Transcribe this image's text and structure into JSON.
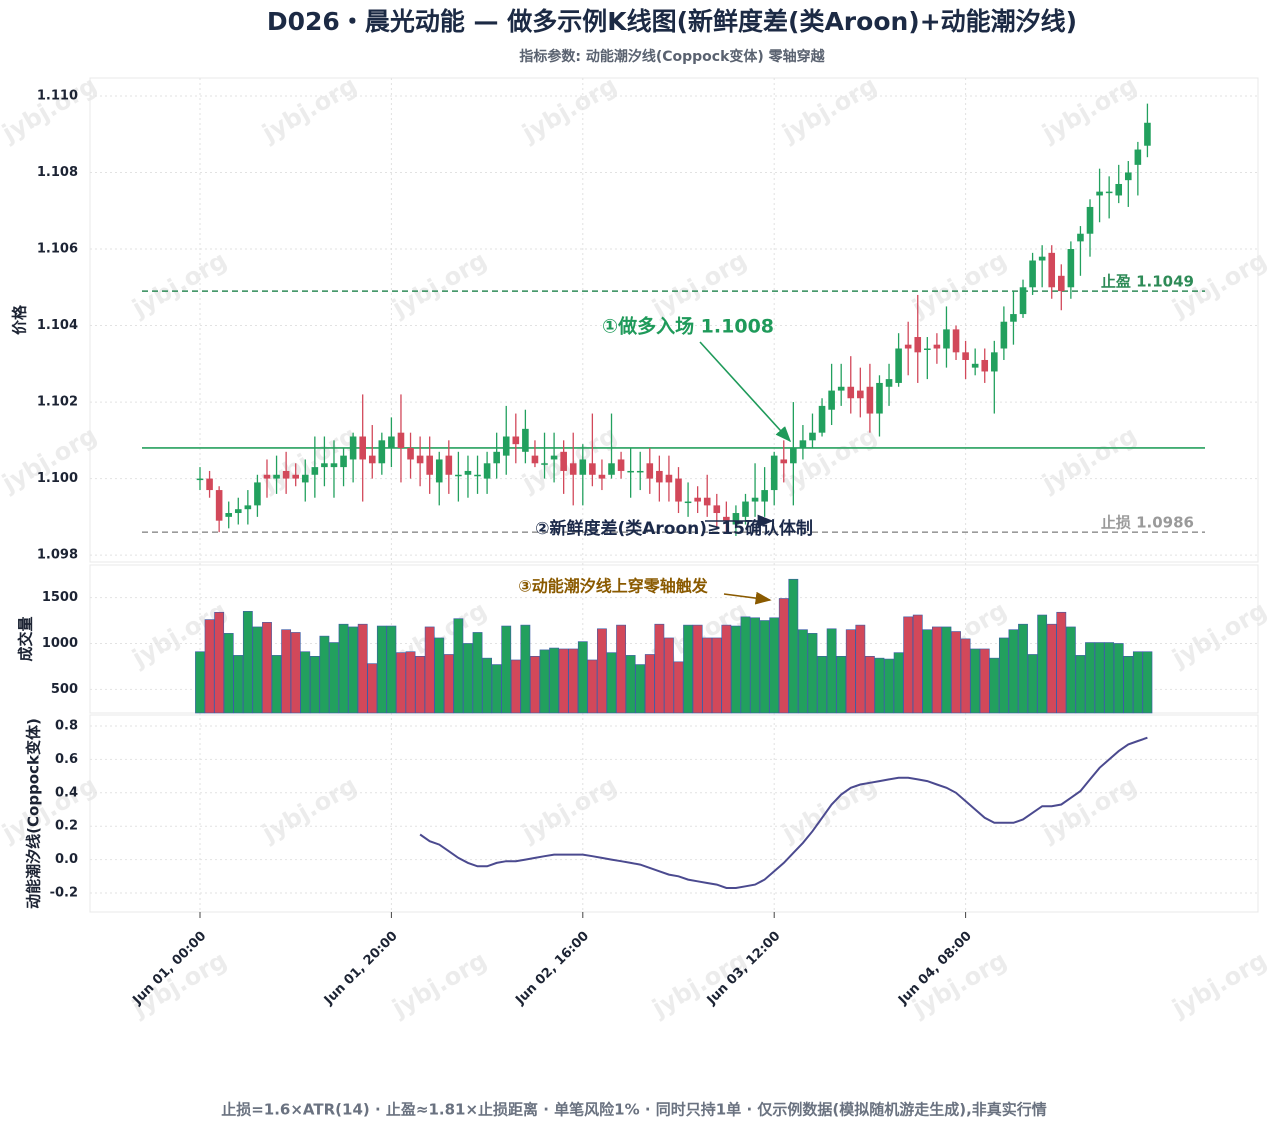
{
  "chart_data": {
    "type": "candlestick",
    "title": "D026・晨光动能 — 做多示例K线图(新鲜度差(类Aroon)+动能潮汐线)",
    "subtitle": "指标参数: 动能潮汐线(Coppock变体) 零轴穿越",
    "ylabel": "价格",
    "footer": "止损=1.6×ATR(14) · 止盈≈1.81×止损距离 · 单笔风险1% · 同时只持1单 · 仅示例数据(模拟随机游走生成),非真实行情",
    "watermark": "jybj.org",
    "up_color": "#22a05e",
    "down_color": "#d2485a",
    "grid": true,
    "x": [
      "Jun 01, 00:00",
      "Jun 01, 01:00",
      "Jun 01, 02:00",
      "Jun 01, 03:00",
      "Jun 01, 04:00",
      "Jun 01, 05:00",
      "Jun 01, 06:00",
      "Jun 01, 07:00",
      "Jun 01, 08:00",
      "Jun 01, 09:00",
      "Jun 01, 10:00",
      "Jun 01, 11:00",
      "Jun 01, 12:00",
      "Jun 01, 13:00",
      "Jun 01, 14:00",
      "Jun 01, 15:00",
      "Jun 01, 16:00",
      "Jun 01, 17:00",
      "Jun 01, 18:00",
      "Jun 01, 19:00",
      "Jun 01, 20:00",
      "Jun 01, 21:00",
      "Jun 01, 22:00",
      "Jun 01, 23:00",
      "Jun 02, 00:00",
      "Jun 02, 01:00",
      "Jun 02, 02:00",
      "Jun 02, 03:00",
      "Jun 02, 04:00",
      "Jun 02, 05:00",
      "Jun 02, 06:00",
      "Jun 02, 07:00",
      "Jun 02, 08:00",
      "Jun 02, 09:00",
      "Jun 02, 10:00",
      "Jun 02, 11:00",
      "Jun 02, 12:00",
      "Jun 02, 13:00",
      "Jun 02, 14:00",
      "Jun 02, 15:00",
      "Jun 02, 16:00",
      "Jun 02, 17:00",
      "Jun 02, 18:00",
      "Jun 02, 19:00",
      "Jun 02, 20:00",
      "Jun 02, 21:00",
      "Jun 02, 22:00",
      "Jun 02, 23:00",
      "Jun 03, 00:00",
      "Jun 03, 01:00",
      "Jun 03, 02:00",
      "Jun 03, 03:00",
      "Jun 03, 04:00",
      "Jun 03, 05:00",
      "Jun 03, 06:00",
      "Jun 03, 07:00",
      "Jun 03, 08:00",
      "Jun 03, 09:00",
      "Jun 03, 10:00",
      "Jun 03, 11:00",
      "Jun 03, 12:00",
      "Jun 03, 13:00",
      "Jun 03, 14:00",
      "Jun 03, 15:00",
      "Jun 03, 16:00",
      "Jun 03, 17:00",
      "Jun 03, 18:00",
      "Jun 03, 19:00",
      "Jun 03, 20:00",
      "Jun 03, 21:00",
      "Jun 03, 22:00",
      "Jun 03, 23:00",
      "Jun 04, 00:00",
      "Jun 04, 01:00",
      "Jun 04, 02:00",
      "Jun 04, 03:00",
      "Jun 04, 04:00",
      "Jun 04, 05:00",
      "Jun 04, 06:00",
      "Jun 04, 07:00",
      "Jun 04, 08:00",
      "Jun 04, 09:00",
      "Jun 04, 10:00",
      "Jun 04, 11:00",
      "Jun 04, 12:00",
      "Jun 04, 13:00",
      "Jun 04, 14:00",
      "Jun 04, 15:00",
      "Jun 04, 16:00",
      "Jun 04, 17:00",
      "Jun 04, 18:00",
      "Jun 04, 19:00",
      "Jun 04, 20:00",
      "Jun 04, 21:00",
      "Jun 04, 22:00",
      "Jun 04, 23:00",
      "Jun 05, 00:00",
      "Jun 05, 01:00",
      "Jun 05, 02:00",
      "Jun 05, 03:00"
    ],
    "xticks": [
      "Jun 01, 00:00",
      "Jun 01, 20:00",
      "Jun 02, 16:00",
      "Jun 03, 12:00",
      "Jun 04, 08:00"
    ],
    "ohlc": [
      [
        1.1,
        1.1003,
        1.0997,
        1.1
      ],
      [
        1.1,
        1.1002,
        1.0995,
        1.0997
      ],
      [
        1.0997,
        1.0998,
        1.0986,
        1.0989
      ],
      [
        1.099,
        1.0994,
        1.0987,
        1.0991
      ],
      [
        1.0991,
        1.0995,
        1.0988,
        1.0992
      ],
      [
        1.0992,
        1.0997,
        1.0988,
        1.0993
      ],
      [
        1.0993,
        1.1001,
        1.099,
        1.0999
      ],
      [
        1.1001,
        1.1005,
        1.0995,
        1.1
      ],
      [
        1.1,
        1.1006,
        1.0996,
        1.1001
      ],
      [
        1.1002,
        1.1007,
        1.0996,
        1.1
      ],
      [
        1.1001,
        1.1004,
        1.0998,
        1.1
      ],
      [
        1.0999,
        1.1005,
        1.0994,
        1.1001
      ],
      [
        1.1001,
        1.1011,
        1.0995,
        1.1003
      ],
      [
        1.1003,
        1.1011,
        1.0998,
        1.1004
      ],
      [
        1.1003,
        1.101,
        1.0995,
        1.1004
      ],
      [
        1.1003,
        1.1008,
        1.0998,
        1.1006
      ],
      [
        1.1005,
        1.1012,
        1.0999,
        1.1011
      ],
      [
        1.1011,
        1.1022,
        1.0994,
        1.1005
      ],
      [
        1.1006,
        1.1014,
        1.1,
        1.1004
      ],
      [
        1.1004,
        1.1012,
        1.1001,
        1.101
      ],
      [
        1.1008,
        1.1016,
        1.1003,
        1.1011
      ],
      [
        1.1012,
        1.1022,
        1.0999,
        1.1008
      ],
      [
        1.1008,
        1.1012,
        1.1,
        1.1005
      ],
      [
        1.1006,
        1.1011,
        1.0998,
        1.1004
      ],
      [
        1.1006,
        1.1011,
        1.0996,
        1.1001
      ],
      [
        1.0999,
        1.1007,
        1.0993,
        1.1005
      ],
      [
        1.1006,
        1.101,
        1.0996,
        1.1001
      ],
      [
        1.1001,
        1.1007,
        1.0994,
        1.1001
      ],
      [
        1.1001,
        1.1006,
        1.0995,
        1.1002
      ],
      [
        1.1001,
        1.1006,
        1.0996,
        1.1001
      ],
      [
        1.1,
        1.1007,
        1.0996,
        1.1004
      ],
      [
        1.1004,
        1.1012,
        1.1,
        1.1007
      ],
      [
        1.1006,
        1.1019,
        1.1001,
        1.1011
      ],
      [
        1.1011,
        1.1017,
        1.1004,
        1.1009
      ],
      [
        1.1007,
        1.1018,
        1.1004,
        1.1013
      ],
      [
        1.1006,
        1.101,
        1.1003,
        1.1004
      ],
      [
        1.1004,
        1.1012,
        1.1,
        1.1004
      ],
      [
        1.1005,
        1.1012,
        1.0999,
        1.1006
      ],
      [
        1.1007,
        1.101,
        1.0996,
        1.1002
      ],
      [
        1.1004,
        1.1012,
        1.0993,
        1.1001
      ],
      [
        1.1001,
        1.1009,
        1.0993,
        1.1005
      ],
      [
        1.1004,
        1.1017,
        1.0998,
        1.1001
      ],
      [
        1.1001,
        1.1005,
        1.0997,
        1.1
      ],
      [
        1.1001,
        1.1017,
        1.1,
        1.1004
      ],
      [
        1.1005,
        1.1007,
        1.1,
        1.1002
      ],
      [
        1.1002,
        1.1008,
        1.0995,
        1.1002
      ],
      [
        1.1002,
        1.1007,
        1.0997,
        1.1002
      ],
      [
        1.1004,
        1.1008,
        1.0996,
        1.1
      ],
      [
        1.1002,
        1.1006,
        1.0994,
        1.0999
      ],
      [
        1.1001,
        1.1006,
        1.0994,
        1.0999
      ],
      [
        1.1,
        1.1003,
        1.0991,
        1.0994
      ],
      [
        1.0994,
        1.0999,
        1.099,
        1.0994
      ],
      [
        1.0995,
        1.0998,
        1.0991,
        1.0994
      ],
      [
        1.0995,
        1.1001,
        1.099,
        1.0993
      ],
      [
        1.0993,
        1.0996,
        1.0987,
        1.0991
      ],
      [
        1.099,
        1.0994,
        1.0986,
        1.0989
      ],
      [
        1.0988,
        1.0993,
        1.0985,
        1.0991
      ],
      [
        1.099,
        1.0996,
        1.0988,
        1.0994
      ],
      [
        1.0994,
        1.1004,
        1.099,
        1.0995
      ],
      [
        1.0994,
        1.1003,
        1.099,
        1.0997
      ],
      [
        1.0997,
        1.1007,
        1.0993,
        1.1006
      ],
      [
        1.1005,
        1.101,
        1.0999,
        1.1004
      ],
      [
        1.1004,
        1.102,
        1.0993,
        1.1008
      ],
      [
        1.1008,
        1.1014,
        1.1005,
        1.101
      ],
      [
        1.101,
        1.1017,
        1.1008,
        1.1012
      ],
      [
        1.1012,
        1.1021,
        1.1011,
        1.1019
      ],
      [
        1.1018,
        1.103,
        1.1014,
        1.1023
      ],
      [
        1.1023,
        1.103,
        1.1019,
        1.1024
      ],
      [
        1.1024,
        1.1032,
        1.1017,
        1.1021
      ],
      [
        1.1023,
        1.1029,
        1.1016,
        1.1021
      ],
      [
        1.1024,
        1.103,
        1.1012,
        1.1017
      ],
      [
        1.1017,
        1.1027,
        1.1011,
        1.1025
      ],
      [
        1.1024,
        1.103,
        1.1019,
        1.1026
      ],
      [
        1.1025,
        1.1038,
        1.1024,
        1.1034
      ],
      [
        1.1035,
        1.1041,
        1.1027,
        1.1034
      ],
      [
        1.1037,
        1.1048,
        1.1025,
        1.1033
      ],
      [
        1.1034,
        1.1037,
        1.1026,
        1.1034
      ],
      [
        1.1035,
        1.1038,
        1.103,
        1.1034
      ],
      [
        1.1034,
        1.1045,
        1.1029,
        1.1039
      ],
      [
        1.1039,
        1.104,
        1.1031,
        1.1033
      ],
      [
        1.1033,
        1.1036,
        1.1026,
        1.1031
      ],
      [
        1.1029,
        1.1034,
        1.1027,
        1.103
      ],
      [
        1.1031,
        1.1034,
        1.1025,
        1.1028
      ],
      [
        1.1028,
        1.1036,
        1.1017,
        1.1033
      ],
      [
        1.1034,
        1.1045,
        1.1031,
        1.1041
      ],
      [
        1.1041,
        1.1049,
        1.1035,
        1.1043
      ],
      [
        1.1043,
        1.1052,
        1.1042,
        1.105
      ],
      [
        1.105,
        1.1059,
        1.1048,
        1.1057
      ],
      [
        1.1057,
        1.1061,
        1.105,
        1.1058
      ],
      [
        1.1059,
        1.1061,
        1.1047,
        1.105
      ],
      [
        1.1053,
        1.1056,
        1.1044,
        1.1049
      ],
      [
        1.105,
        1.1062,
        1.1047,
        1.106
      ],
      [
        1.1062,
        1.1066,
        1.1053,
        1.1064
      ],
      [
        1.1064,
        1.1073,
        1.1058,
        1.1071
      ],
      [
        1.1074,
        1.1081,
        1.1067,
        1.1075
      ],
      [
        1.1075,
        1.1079,
        1.1068,
        1.1075
      ],
      [
        1.1074,
        1.1082,
        1.1072,
        1.1077
      ],
      [
        1.1078,
        1.1083,
        1.1071,
        1.108
      ],
      [
        1.1082,
        1.1088,
        1.1074,
        1.1086
      ],
      [
        1.1087,
        1.1098,
        1.1084,
        1.1093
      ]
    ],
    "ylim": [
      1.09782,
      1.11047
    ],
    "yticks": [
      1.098,
      {
        "value": 1.1,
        "label": "1.100"
      },
      1.102,
      1.104,
      1.106,
      1.108,
      {
        "value": 1.11,
        "label": "1.110"
      }
    ],
    "levels": [
      {
        "value": 1.1008,
        "color": "#27a05e",
        "style": "solid"
      },
      {
        "value": 1.1049,
        "color": "#2e8b57",
        "style": "dashed",
        "label": "止盈 1.1049"
      },
      {
        "value": 1.0986,
        "color": "#9a9a9a",
        "style": "dashed",
        "label": "止损 1.0986"
      }
    ],
    "annotations": [
      {
        "text": "①做多入场 1.1008",
        "color": "#1f9a5a"
      },
      {
        "text": "②新鲜度差(类Aroon)≥15确认体制",
        "color": "#1c2a4a"
      },
      {
        "text": "③动能潮汐线上穿零轴触发",
        "color": "#8a5a00"
      }
    ],
    "volume": {
      "ylabel": "成交量",
      "edge_color": "#3b5ba5",
      "values": [
        910,
        1260,
        1340,
        1110,
        870,
        1350,
        1180,
        1230,
        870,
        1150,
        1120,
        910,
        860,
        1080,
        1010,
        1210,
        1180,
        1210,
        780,
        1190,
        1190,
        900,
        910,
        860,
        1180,
        1060,
        880,
        1270,
        1000,
        1120,
        840,
        770,
        1190,
        820,
        1200,
        860,
        930,
        950,
        940,
        940,
        1020,
        820,
        1160,
        900,
        1200,
        870,
        770,
        880,
        1210,
        1060,
        800,
        1200,
        1200,
        1060,
        1060,
        1200,
        1190,
        1290,
        1280,
        1250,
        1280,
        1490,
        1700,
        1150,
        1110,
        860,
        1160,
        860,
        1150,
        1200,
        860,
        840,
        830,
        900,
        1290,
        1310,
        1150,
        1180,
        1180,
        1130,
        1050,
        940,
        940,
        840,
        1060,
        1150,
        1210,
        880,
        1310,
        1210,
        1340,
        1180,
        870,
        1010,
        1010,
        1010,
        1000,
        860,
        910,
        910
      ],
      "ylim": [
        242,
        1855
      ],
      "yticks": [
        500,
        1000,
        1500
      ]
    },
    "indicator": {
      "ylabel": "动能潮汐线(Coppock变体)",
      "color": "#4b4a8f",
      "values": [
        null,
        null,
        null,
        null,
        null,
        null,
        null,
        null,
        null,
        null,
        null,
        null,
        null,
        null,
        null,
        null,
        null,
        null,
        null,
        null,
        null,
        null,
        null,
        0.15,
        0.11,
        0.09,
        0.05,
        0.01,
        -0.02,
        -0.04,
        -0.04,
        -0.02,
        -0.01,
        -0.01,
        0.0,
        0.01,
        0.02,
        0.03,
        0.03,
        0.03,
        0.03,
        0.02,
        0.01,
        0.0,
        -0.01,
        -0.02,
        -0.03,
        -0.05,
        -0.07,
        -0.09,
        -0.1,
        -0.12,
        -0.13,
        -0.14,
        -0.15,
        -0.17,
        -0.17,
        -0.16,
        -0.15,
        -0.12,
        -0.07,
        -0.02,
        0.04,
        0.1,
        0.17,
        0.25,
        0.33,
        0.39,
        0.43,
        0.45,
        0.46,
        0.47,
        0.48,
        0.49,
        0.49,
        0.48,
        0.47,
        0.45,
        0.43,
        0.4,
        0.35,
        0.3,
        0.25,
        0.22,
        0.22,
        0.22,
        0.24,
        0.28,
        0.32,
        0.32,
        0.33,
        0.37,
        0.41,
        0.48,
        0.55,
        0.6,
        0.65,
        0.69,
        0.71,
        0.73
      ],
      "ylim": [
        -0.314,
        0.866
      ],
      "yticks": [
        -0.2,
        {
          "value": 0,
          "label": "0.0"
        },
        0.2,
        0.4,
        0.6,
        0.8
      ]
    }
  }
}
